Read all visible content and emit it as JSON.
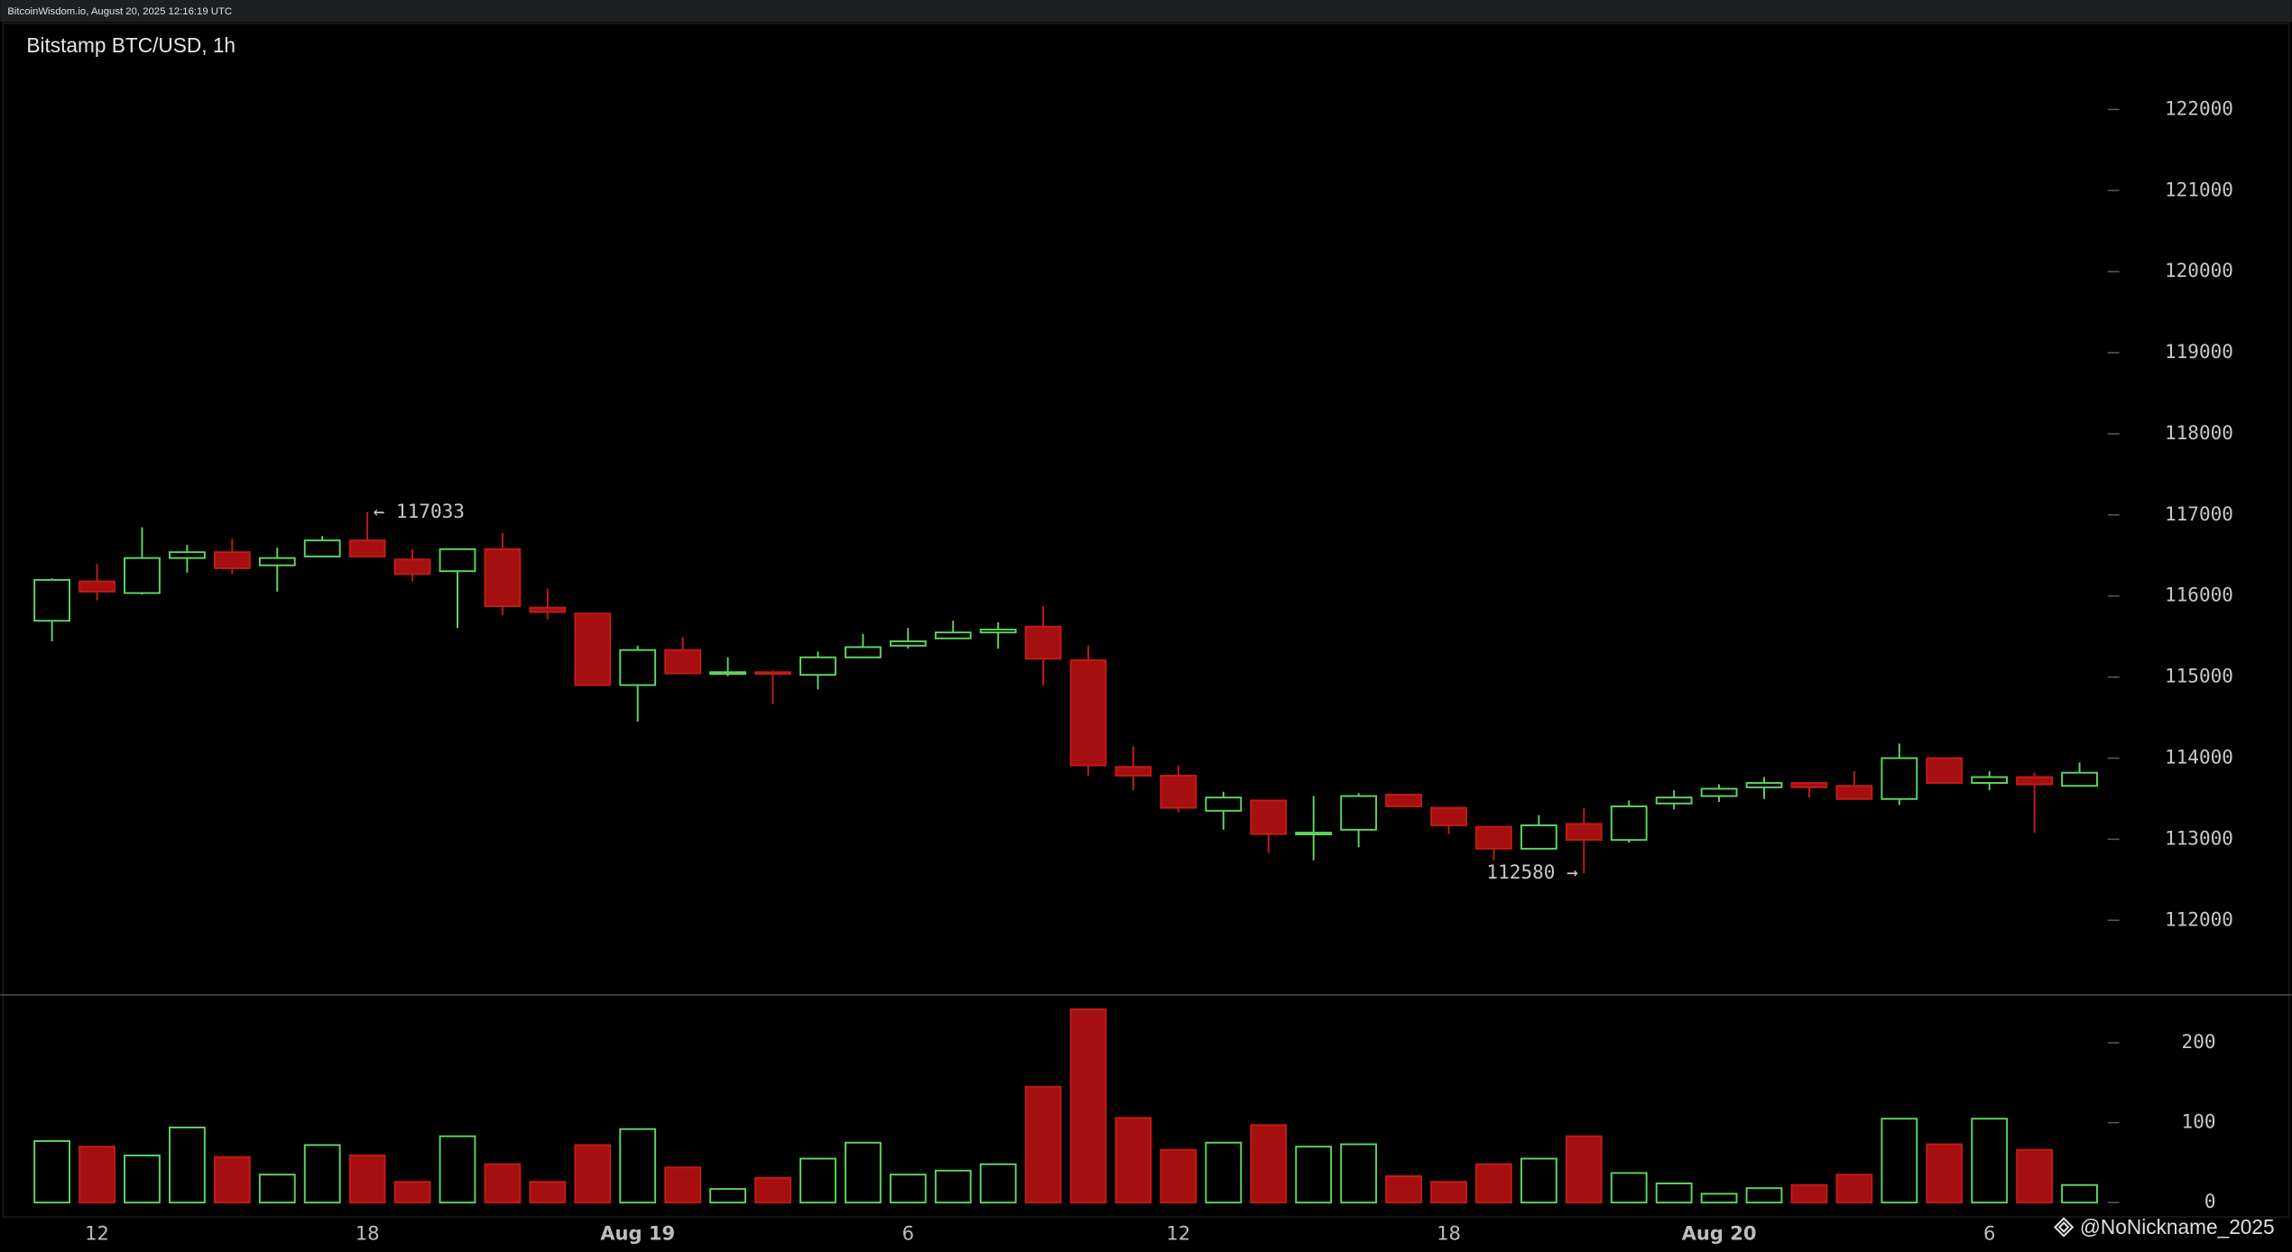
{
  "chart_data": {
    "type": "candlestick",
    "header": "BitcoinWisdom.io, August 20, 2025 12:16:19 UTC",
    "title": "Bitstamp BTC/USD, 1h",
    "watermark": "@NoNickname_2025",
    "categories": [
      null,
      "12",
      null,
      null,
      null,
      null,
      null,
      "18",
      null,
      null,
      null,
      null,
      null,
      "Aug 19",
      null,
      null,
      null,
      null,
      null,
      "6",
      null,
      null,
      null,
      null,
      null,
      "12",
      null,
      null,
      null,
      null,
      null,
      "18",
      null,
      null,
      null,
      null,
      null,
      "Aug 20",
      null,
      null,
      null,
      null,
      null,
      "6",
      null,
      null
    ],
    "open": [
      115694,
      116180,
      116036,
      116468,
      116540,
      116378,
      116487,
      116685,
      116450,
      116306,
      116577,
      115856,
      115784,
      114901,
      115333,
      115040,
      115060,
      115027,
      115243,
      115387,
      115477,
      115550,
      115622,
      115207,
      113892,
      113784,
      113351,
      113478,
      113063,
      113117,
      113550,
      113387,
      113153,
      112883,
      113189,
      112991,
      113441,
      113532,
      113640,
      113694,
      113658,
      113496,
      114000,
      113694,
      113766,
      113658
    ],
    "high": [
      116216,
      116396,
      116847,
      116631,
      116703,
      116595,
      116739,
      117033,
      116577,
      116577,
      116775,
      116090,
      115784,
      115387,
      115495,
      115243,
      115081,
      115315,
      115532,
      115604,
      115694,
      115676,
      115874,
      115387,
      114144,
      113910,
      113586,
      113478,
      113532,
      113568,
      113550,
      113387,
      113153,
      113297,
      113387,
      113478,
      113604,
      113676,
      113766,
      113694,
      113838,
      114180,
      114000,
      113838,
      113820,
      113946
    ],
    "low": [
      115441,
      115946,
      116018,
      116288,
      116270,
      116054,
      116487,
      116487,
      116180,
      115604,
      115766,
      115712,
      114901,
      114450,
      115045,
      115009,
      114667,
      114847,
      115243,
      115351,
      115477,
      115351,
      114901,
      113784,
      113604,
      113333,
      113117,
      112829,
      112739,
      112901,
      113405,
      113063,
      112739,
      112883,
      112580,
      112955,
      113369,
      113460,
      113496,
      113514,
      113496,
      113423,
      113694,
      113604,
      113081,
      113658
    ],
    "close": [
      116198,
      116054,
      116468,
      116540,
      116342,
      116468,
      116685,
      116487,
      116270,
      116577,
      115874,
      115802,
      114901,
      115333,
      115045,
      115060,
      115040,
      115243,
      115369,
      115441,
      115550,
      115586,
      115225,
      113910,
      113784,
      113387,
      113514,
      113063,
      113081,
      113532,
      113405,
      113171,
      112883,
      113171,
      112991,
      113405,
      113514,
      113622,
      113694,
      113640,
      113496,
      114000,
      113694,
      113766,
      113676,
      113820
    ],
    "volume": [
      77,
      70,
      59,
      94,
      57,
      35,
      72,
      59,
      26,
      83,
      48,
      26,
      72,
      92,
      44,
      17,
      31,
      55,
      75,
      35,
      40,
      48,
      145,
      242,
      106,
      66,
      75,
      97,
      70,
      73,
      33,
      26,
      48,
      55,
      83,
      37,
      24,
      11,
      18,
      22,
      35,
      105,
      73,
      105,
      66,
      22
    ],
    "ylim": [
      111080,
      123080
    ],
    "yticks": [
      112000,
      113000,
      114000,
      115000,
      116000,
      117000,
      118000,
      119000,
      120000,
      121000,
      122000
    ],
    "volume_ylim": [
      -18,
      260
    ],
    "volume_yticks": [
      0,
      100,
      200
    ],
    "up_color": "#5ed45e",
    "down_color": "#a50f0f",
    "annotations": [
      {
        "text": "← 117033"
      },
      {
        "text": "112580 →"
      }
    ]
  }
}
